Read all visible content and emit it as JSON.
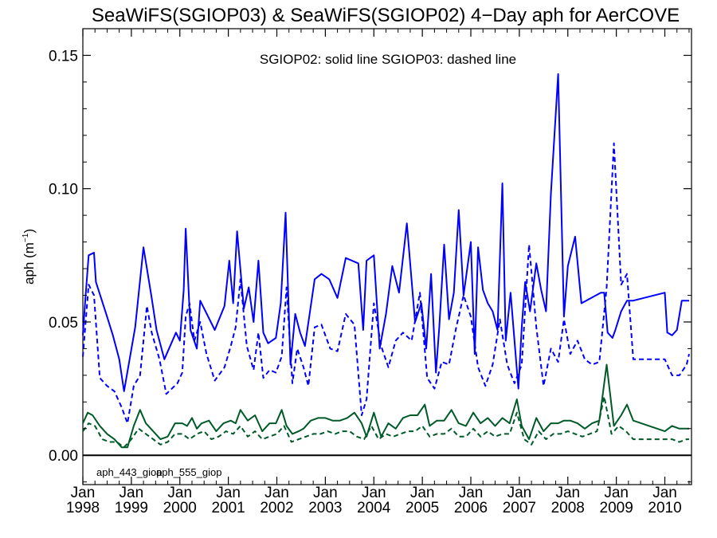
{
  "chart_data": {
    "type": "line",
    "title": "SeaWiFS(SGIOP03) & SeaWiFS(SGIOP02) 4−Day aph for AerCOVE",
    "annotation": "SGIOP02: solid line   SGIOP03: dashed line",
    "xlabel": "",
    "ylabel_main": "aph (m",
    "ylabel_sup": "−1",
    "ylabel_close": ")",
    "xlim": [
      1998.0,
      2010.55
    ],
    "ylim": [
      -0.011,
      0.16
    ],
    "y_ticks": [
      0.0,
      0.05,
      0.1,
      0.15
    ],
    "y_tick_labels": [
      "0.00",
      "0.05",
      "0.10",
      "0.15"
    ],
    "x_ticks": [
      1998,
      1999,
      2000,
      2001,
      2002,
      2003,
      2004,
      2005,
      2006,
      2007,
      2008,
      2009,
      2010
    ],
    "x_tick_month_label": "Jan",
    "x_tick_labels": [
      "1998",
      "1999",
      "2000",
      "2001",
      "2002",
      "2003",
      "2004",
      "2005",
      "2006",
      "2007",
      "2008",
      "2009",
      "2010"
    ],
    "zero_line": true,
    "grid": false,
    "legend": [
      {
        "label": "aph_443_giop",
        "color": "#0000ff"
      },
      {
        "label": "aph_555_giop",
        "color": "#005a28"
      }
    ],
    "series": [
      {
        "name": "aph_443_giop",
        "model": "SGIOP02",
        "style": "solid",
        "color": "#0000ff",
        "x": [
          1998.0,
          1998.05,
          1998.12,
          1998.23,
          1998.27,
          1998.5,
          1998.62,
          1998.75,
          1998.85,
          1999.08,
          1999.25,
          1999.42,
          1999.52,
          1999.68,
          1999.92,
          2000.0,
          2000.08,
          2000.12,
          2000.22,
          2000.35,
          2000.42,
          2000.72,
          2000.92,
          2001.02,
          2001.1,
          2001.18,
          2001.32,
          2001.42,
          2001.52,
          2001.62,
          2001.72,
          2001.82,
          2001.98,
          2002.08,
          2002.18,
          2002.28,
          2002.38,
          2002.48,
          2002.58,
          2002.78,
          2002.92,
          2003.08,
          2003.25,
          2003.42,
          2003.68,
          2003.78,
          2003.85,
          2004.0,
          2004.12,
          2004.25,
          2004.38,
          2004.52,
          2004.68,
          2004.85,
          2004.98,
          2005.08,
          2005.18,
          2005.28,
          2005.35,
          2005.45,
          2005.55,
          2005.65,
          2005.75,
          2005.85,
          2006.0,
          2006.08,
          2006.15,
          2006.25,
          2006.35,
          2006.45,
          2006.55,
          2006.65,
          2006.72,
          2006.82,
          2006.98,
          2007.05,
          2007.12,
          2007.22,
          2007.35,
          2007.45,
          2007.55,
          2007.65,
          2007.8,
          2007.92,
          2008.0,
          2008.15,
          2008.28,
          2008.68,
          2008.75,
          2008.82,
          2008.92,
          2008.98,
          2009.1,
          2009.22,
          2009.35,
          2010.0,
          2010.05,
          2010.15,
          2010.25,
          2010.35,
          2010.45,
          2010.5
        ],
        "values": [
          0.045,
          0.058,
          0.075,
          0.076,
          0.065,
          0.052,
          0.045,
          0.036,
          0.024,
          0.048,
          0.078,
          0.059,
          0.047,
          0.036,
          0.046,
          0.043,
          0.062,
          0.085,
          0.047,
          0.04,
          0.058,
          0.047,
          0.056,
          0.073,
          0.057,
          0.084,
          0.055,
          0.063,
          0.05,
          0.073,
          0.046,
          0.042,
          0.044,
          0.057,
          0.091,
          0.034,
          0.053,
          0.046,
          0.041,
          0.066,
          0.068,
          0.066,
          0.059,
          0.074,
          0.072,
          0.047,
          0.073,
          0.075,
          0.04,
          0.053,
          0.071,
          0.061,
          0.087,
          0.05,
          0.057,
          0.04,
          0.068,
          0.031,
          0.048,
          0.079,
          0.051,
          0.061,
          0.092,
          0.06,
          0.08,
          0.038,
          0.078,
          0.062,
          0.057,
          0.054,
          0.047,
          0.102,
          0.043,
          0.061,
          0.025,
          0.048,
          0.065,
          0.054,
          0.072,
          0.062,
          0.054,
          0.098,
          0.143,
          0.052,
          0.071,
          0.082,
          0.057,
          0.061,
          0.061,
          0.046,
          0.044,
          0.047,
          0.054,
          0.058,
          0.058,
          0.061,
          0.046,
          0.045,
          0.047,
          0.058,
          0.058,
          0.058
        ]
      },
      {
        "name": "aph_443_giop",
        "model": "SGIOP03",
        "style": "dashed",
        "color": "#0000ff",
        "x": [
          1998.0,
          1998.12,
          1998.23,
          1998.35,
          1998.5,
          1998.65,
          1998.8,
          1998.92,
          1999.05,
          1999.18,
          1999.32,
          1999.42,
          1999.58,
          1999.72,
          1999.95,
          2000.05,
          2000.12,
          2000.2,
          2000.3,
          2000.42,
          2000.55,
          2000.72,
          2000.92,
          2001.05,
          2001.15,
          2001.25,
          2001.38,
          2001.52,
          2001.62,
          2001.72,
          2001.85,
          2001.98,
          2002.1,
          2002.2,
          2002.32,
          2002.42,
          2002.55,
          2002.65,
          2002.78,
          2002.92,
          2003.1,
          2003.25,
          2003.42,
          2003.6,
          2003.75,
          2003.85,
          2004.0,
          2004.15,
          2004.3,
          2004.45,
          2004.6,
          2004.78,
          2004.95,
          2005.1,
          2005.25,
          2005.4,
          2005.55,
          2005.7,
          2005.85,
          2006.0,
          2006.15,
          2006.3,
          2006.45,
          2006.6,
          2006.75,
          2006.9,
          2007.05,
          2007.2,
          2007.35,
          2007.5,
          2007.65,
          2007.8,
          2007.92,
          2008.05,
          2008.2,
          2008.35,
          2008.5,
          2008.65,
          2008.8,
          2008.95,
          2009.1,
          2009.22,
          2009.35,
          2010.0,
          2010.15,
          2010.3,
          2010.45,
          2010.5
        ],
        "values": [
          0.037,
          0.064,
          0.06,
          0.029,
          0.026,
          0.024,
          0.018,
          0.012,
          0.026,
          0.03,
          0.056,
          0.046,
          0.036,
          0.023,
          0.027,
          0.031,
          0.052,
          0.057,
          0.043,
          0.05,
          0.038,
          0.028,
          0.033,
          0.041,
          0.048,
          0.066,
          0.041,
          0.032,
          0.046,
          0.029,
          0.032,
          0.031,
          0.037,
          0.063,
          0.027,
          0.04,
          0.033,
          0.026,
          0.048,
          0.049,
          0.04,
          0.039,
          0.053,
          0.049,
          0.015,
          0.021,
          0.057,
          0.041,
          0.033,
          0.043,
          0.046,
          0.043,
          0.061,
          0.029,
          0.025,
          0.035,
          0.034,
          0.048,
          0.06,
          0.052,
          0.033,
          0.026,
          0.034,
          0.051,
          0.034,
          0.027,
          0.034,
          0.079,
          0.048,
          0.026,
          0.04,
          0.035,
          0.051,
          0.038,
          0.043,
          0.036,
          0.034,
          0.035,
          0.063,
          0.117,
          0.064,
          0.068,
          0.036,
          0.036,
          0.03,
          0.03,
          0.034,
          0.038
        ]
      },
      {
        "name": "aph_555_giop",
        "model": "SGIOP02",
        "style": "solid",
        "color": "#005a28",
        "x": [
          1998.0,
          1998.1,
          1998.2,
          1998.35,
          1998.5,
          1998.65,
          1998.8,
          1998.92,
          1999.05,
          1999.18,
          1999.3,
          1999.45,
          1999.6,
          1999.75,
          1999.9,
          2000.05,
          2000.15,
          2000.25,
          2000.35,
          2000.45,
          2000.6,
          2000.75,
          2000.9,
          2001.05,
          2001.15,
          2001.25,
          2001.4,
          2001.55,
          2001.7,
          2001.85,
          2001.98,
          2002.1,
          2002.2,
          2002.32,
          2002.45,
          2002.55,
          2002.7,
          2002.85,
          2003.0,
          2003.15,
          2003.3,
          2003.45,
          2003.6,
          2003.75,
          2003.85,
          2004.0,
          2004.15,
          2004.3,
          2004.45,
          2004.6,
          2004.75,
          2004.9,
          2005.05,
          2005.15,
          2005.3,
          2005.45,
          2005.6,
          2005.75,
          2005.9,
          2006.05,
          2006.2,
          2006.35,
          2006.5,
          2006.65,
          2006.8,
          2006.95,
          2007.05,
          2007.2,
          2007.35,
          2007.5,
          2007.65,
          2007.8,
          2007.92,
          2008.05,
          2008.2,
          2008.35,
          2008.5,
          2008.65,
          2008.8,
          2008.95,
          2009.1,
          2009.22,
          2009.35,
          2010.0,
          2010.15,
          2010.3,
          2010.45,
          2010.5
        ],
        "values": [
          0.012,
          0.016,
          0.015,
          0.011,
          0.008,
          0.006,
          0.003,
          0.003,
          0.011,
          0.017,
          0.012,
          0.009,
          0.006,
          0.007,
          0.012,
          0.012,
          0.011,
          0.014,
          0.01,
          0.012,
          0.013,
          0.009,
          0.012,
          0.013,
          0.012,
          0.017,
          0.013,
          0.015,
          0.009,
          0.012,
          0.012,
          0.017,
          0.011,
          0.008,
          0.009,
          0.01,
          0.013,
          0.014,
          0.014,
          0.013,
          0.013,
          0.014,
          0.016,
          0.012,
          0.007,
          0.016,
          0.007,
          0.012,
          0.01,
          0.014,
          0.015,
          0.015,
          0.019,
          0.011,
          0.013,
          0.013,
          0.017,
          0.012,
          0.011,
          0.016,
          0.012,
          0.014,
          0.011,
          0.014,
          0.012,
          0.021,
          0.011,
          0.006,
          0.014,
          0.009,
          0.012,
          0.012,
          0.013,
          0.013,
          0.012,
          0.01,
          0.012,
          0.013,
          0.034,
          0.011,
          0.015,
          0.019,
          0.013,
          0.009,
          0.011,
          0.01,
          0.01,
          0.01
        ]
      },
      {
        "name": "aph_555_giop",
        "model": "SGIOP03",
        "style": "dashed",
        "color": "#005a28",
        "x": [
          1998.0,
          1998.12,
          1998.25,
          1998.4,
          1998.55,
          1998.7,
          1998.85,
          1999.0,
          1999.15,
          1999.3,
          1999.45,
          1999.6,
          1999.75,
          1999.9,
          2000.05,
          2000.2,
          2000.35,
          2000.5,
          2000.65,
          2000.8,
          2000.95,
          2001.1,
          2001.25,
          2001.4,
          2001.55,
          2001.7,
          2001.85,
          2002.0,
          2002.15,
          2002.3,
          2002.45,
          2002.6,
          2002.75,
          2002.9,
          2003.05,
          2003.2,
          2003.35,
          2003.5,
          2003.65,
          2003.8,
          2003.95,
          2004.1,
          2004.25,
          2004.4,
          2004.55,
          2004.7,
          2004.85,
          2005.0,
          2005.15,
          2005.3,
          2005.45,
          2005.6,
          2005.75,
          2005.9,
          2006.05,
          2006.2,
          2006.35,
          2006.5,
          2006.65,
          2006.8,
          2006.95,
          2007.1,
          2007.25,
          2007.4,
          2007.55,
          2007.7,
          2007.85,
          2008.0,
          2008.15,
          2008.3,
          2008.45,
          2008.6,
          2008.75,
          2008.9,
          2009.05,
          2009.2,
          2009.35,
          2010.0,
          2010.15,
          2010.3,
          2010.45,
          2010.5
        ],
        "values": [
          0.009,
          0.012,
          0.011,
          0.006,
          0.005,
          0.005,
          0.003,
          0.006,
          0.01,
          0.008,
          0.006,
          0.004,
          0.005,
          0.008,
          0.008,
          0.006,
          0.008,
          0.009,
          0.006,
          0.007,
          0.009,
          0.008,
          0.011,
          0.007,
          0.009,
          0.006,
          0.007,
          0.008,
          0.011,
          0.005,
          0.006,
          0.007,
          0.008,
          0.008,
          0.009,
          0.008,
          0.009,
          0.009,
          0.007,
          0.006,
          0.011,
          0.006,
          0.008,
          0.007,
          0.008,
          0.009,
          0.009,
          0.011,
          0.007,
          0.008,
          0.008,
          0.01,
          0.007,
          0.007,
          0.01,
          0.007,
          0.009,
          0.007,
          0.008,
          0.008,
          0.016,
          0.006,
          0.004,
          0.009,
          0.006,
          0.008,
          0.008,
          0.009,
          0.008,
          0.007,
          0.008,
          0.009,
          0.022,
          0.008,
          0.011,
          0.009,
          0.006,
          0.006,
          0.006,
          0.005,
          0.006,
          0.006
        ]
      }
    ]
  }
}
